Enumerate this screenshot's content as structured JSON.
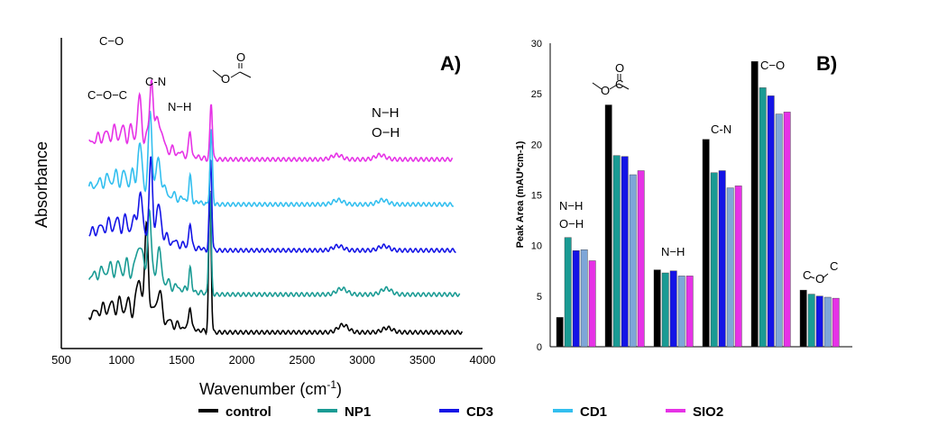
{
  "figure": {
    "legend": [
      {
        "label": "control",
        "color": "#000000"
      },
      {
        "label": "NP1",
        "color": "#1a9b94"
      },
      {
        "label": "CD3",
        "color": "#1414e6"
      },
      {
        "label": "CD1",
        "color": "#33bfef"
      },
      {
        "label": "SIO2",
        "color": "#e632e6"
      }
    ]
  },
  "chart_data": [
    {
      "panel": "A)",
      "type": "line",
      "xlabel": "Wavenumber (cm",
      "xlabel_sup": "-1",
      "xlabel_end": ")",
      "ylabel": "Absorbance",
      "xlim": [
        500,
        4000
      ],
      "xticks": [
        "500",
        "1000",
        "1500",
        "2000",
        "2500",
        "3000",
        "3500",
        "4000"
      ],
      "grid": false,
      "annotations": [
        {
          "text": "C−O",
          "x": 1180
        },
        {
          "text": "C−O−C",
          "x": 1100
        },
        {
          "text": "C-N",
          "x": 1300
        },
        {
          "text": "N−H",
          "x": 1600
        },
        {
          "text": "N−H",
          "x": 3160
        },
        {
          "text": "O−H",
          "x": 3160
        }
      ],
      "series": [
        {
          "name": "control",
          "color": "#000000",
          "x_end": 3830,
          "peaks": [
            [
              1210,
              60
            ],
            [
              1735,
              95
            ],
            [
              2840,
              5
            ],
            [
              3210,
              3
            ]
          ]
        },
        {
          "name": "NP1",
          "color": "#1a9b94",
          "x_end": 3810,
          "peaks": [
            [
              1230,
              45
            ],
            [
              1735,
              70
            ],
            [
              2830,
              4
            ],
            [
              3200,
              4
            ]
          ]
        },
        {
          "name": "CD3",
          "color": "#1414e6",
          "x_end": 3780,
          "peaks": [
            [
              1245,
              45
            ],
            [
              1740,
              62
            ],
            [
              2800,
              3
            ],
            [
              3180,
              3
            ]
          ]
        },
        {
          "name": "CD1",
          "color": "#33bfef",
          "x_end": 3760,
          "peaks": [
            [
              1240,
              48
            ],
            [
              1745,
              50
            ],
            [
              2800,
              3
            ],
            [
              3170,
              3
            ]
          ]
        },
        {
          "name": "SIO2",
          "color": "#e632e6",
          "x_end": 3750,
          "peaks": [
            [
              1250,
              45
            ],
            [
              1745,
              38
            ],
            [
              2790,
              3
            ],
            [
              3150,
              3
            ]
          ]
        }
      ]
    },
    {
      "panel": "B)",
      "type": "bar",
      "ylabel": "Peak Area (mAU*cm-1)",
      "ylim": [
        0,
        30
      ],
      "yticks": [
        "0",
        "5",
        "10",
        "15",
        "20",
        "25",
        "30"
      ],
      "grid": false,
      "group_labels": [
        [
          "N−H",
          "O−H"
        ],
        [],
        [
          "N−H"
        ],
        [
          "C-N"
        ],
        [
          "C−O"
        ],
        []
      ],
      "series": [
        {
          "name": "control",
          "color": "#000000",
          "values": [
            2.9,
            23.9,
            7.6,
            20.5,
            28.2,
            5.6
          ]
        },
        {
          "name": "NP1",
          "color": "#1a9b94",
          "values": [
            10.8,
            18.9,
            7.3,
            17.2,
            25.6,
            5.2
          ]
        },
        {
          "name": "CD3",
          "color": "#1414e6",
          "values": [
            9.5,
            18.8,
            7.5,
            17.4,
            24.8,
            5.0
          ]
        },
        {
          "name": "CD1",
          "color": "#7ea6d8",
          "values": [
            9.6,
            17.0,
            7.0,
            15.7,
            23.0,
            4.9
          ]
        },
        {
          "name": "SIO2",
          "color": "#e632e6",
          "values": [
            8.5,
            17.4,
            7.0,
            15.9,
            23.2,
            4.8
          ]
        }
      ]
    }
  ]
}
